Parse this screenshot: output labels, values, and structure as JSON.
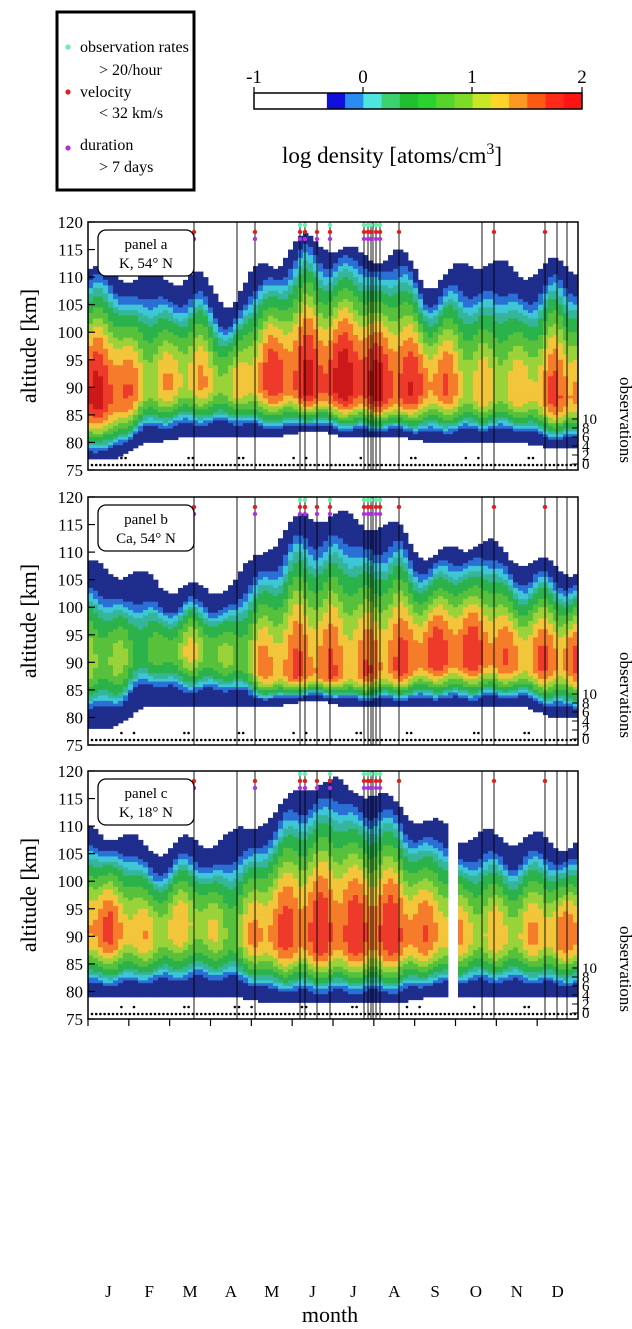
{
  "legend": {
    "items": [
      {
        "label": "observation rates",
        "sub": "> 20/hour",
        "color": "#66f0a8"
      },
      {
        "label": "velocity",
        "sub": "< 32 km/s",
        "color": "#e02020"
      },
      {
        "label": "duration",
        "sub": "> 7 days",
        "color": "#b030e0"
      }
    ]
  },
  "colorbar": {
    "label": "log density [atoms/cm",
    "label_sup": "3",
    "label_close": "]",
    "ticks": [
      "-1",
      "0",
      "1",
      "2"
    ],
    "colors": [
      "#ffffff",
      "#ffffff",
      "#ffffff",
      "#ffffff",
      "#1010dd",
      "#2a8cf0",
      "#4ee6dc",
      "#3fd070",
      "#22c030",
      "#2cd22c",
      "#56d42c",
      "#7edc28",
      "#c8e628",
      "#ffd42a",
      "#ff9820",
      "#ff5a14",
      "#ff2a18",
      "#ff1414"
    ]
  },
  "colors": {
    "navy": "#1f2d8c",
    "blue": "#2a6fd6",
    "cyan": "#3cc6d6",
    "teal": "#35b59a",
    "green": "#2bb24a",
    "lime": "#9ad23a",
    "yellow": "#f2c53a",
    "orange": "#f47c2a",
    "red": "#ee3a2a",
    "darkred": "#cc1818"
  },
  "axes": {
    "ylabel": "altitude [km]",
    "xlabel": "month",
    "obs_label": "observations",
    "y_ticks": [
      "120",
      "115",
      "110",
      "105",
      "100",
      "95",
      "90",
      "85",
      "80",
      "75"
    ],
    "obs_ticks": [
      "10",
      "8",
      "6",
      "4",
      "2",
      "0"
    ],
    "months": [
      "J",
      "F",
      "M",
      "A",
      "M",
      "J",
      "J",
      "A",
      "S",
      "O",
      "N",
      "D"
    ]
  },
  "chart_data": [
    {
      "type": "heatmap",
      "panel_label": "panel a",
      "panel_sub": "K, 54° N",
      "ylim": [
        75,
        120
      ],
      "x_months": [
        0.5,
        1.5,
        2.5,
        3.5,
        4.5,
        5.5,
        6.5,
        7.5,
        8.5,
        9.5,
        10.5,
        11.5
      ],
      "top": [
        111,
        110,
        110,
        106,
        113,
        117,
        114,
        114,
        109,
        113,
        111,
        112
      ],
      "bottom": [
        77,
        80,
        81,
        81,
        81,
        82,
        81,
        81,
        80,
        80,
        80,
        79
      ],
      "peak_alt": [
        88,
        90,
        91,
        90,
        91,
        90,
        90,
        89,
        90,
        89,
        89,
        88
      ],
      "peak_log": [
        1.7,
        1.2,
        1.3,
        1.1,
        1.6,
        1.7,
        1.8,
        1.7,
        1.5,
        1.2,
        1.2,
        1.5
      ]
    },
    {
      "type": "heatmap",
      "panel_label": "panel b",
      "panel_sub": "Ca, 54° N",
      "ylim": [
        75,
        120
      ],
      "x_months": [
        0.5,
        1.5,
        2.5,
        3.5,
        4.5,
        5.5,
        6.5,
        7.5,
        8.5,
        9.5,
        10.5,
        11.5
      ],
      "top": [
        107,
        105,
        103,
        104,
        112,
        117,
        116,
        114,
        109,
        112,
        109,
        107
      ],
      "bottom": [
        78,
        82,
        82,
        82,
        82,
        83,
        82,
        82,
        82,
        82,
        82,
        80
      ],
      "peak_alt": [
        90,
        92,
        92,
        91,
        88,
        88,
        88,
        89,
        91,
        91,
        90,
        90
      ],
      "peak_log": [
        1.0,
        0.7,
        1.1,
        0.9,
        1.4,
        1.5,
        1.4,
        1.5,
        1.6,
        1.6,
        1.4,
        1.5
      ]
    },
    {
      "type": "heatmap",
      "panel_label": "panel c",
      "panel_sub": "K, 18° N",
      "ylim": [
        75,
        120
      ],
      "x_months": [
        0.5,
        1.5,
        2.5,
        3.5,
        4.5,
        5.5,
        6.5,
        7.5,
        8.5,
        9.5,
        10.5,
        11.5
      ],
      "top": [
        109,
        106,
        107,
        108,
        112,
        118,
        117,
        114,
        110,
        108,
        108,
        107
      ],
      "bottom": [
        79,
        79,
        79,
        79,
        78,
        78,
        78,
        78,
        79,
        79,
        79,
        79
      ],
      "peak_alt": [
        91,
        90,
        92,
        90,
        90,
        90,
        90,
        90,
        90,
        90,
        90,
        90
      ],
      "peak_log": [
        1.5,
        1.2,
        1.2,
        1.0,
        1.5,
        1.6,
        1.6,
        1.6,
        1.4,
        1.2,
        1.2,
        1.4
      ]
    }
  ]
}
